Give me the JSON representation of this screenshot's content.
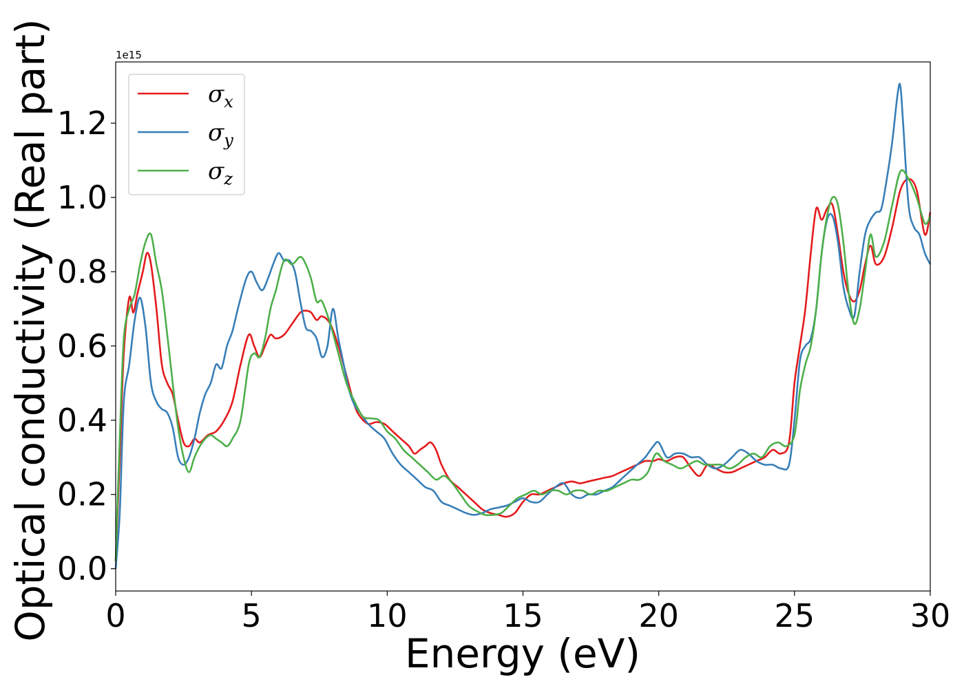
{
  "chart_data": {
    "type": "line",
    "xlabel": "Energy (eV)",
    "ylabel": "Optical conductivity (Real part)",
    "y_scale_label": "1e15",
    "xlim": [
      0,
      30
    ],
    "ylim": [
      -0.06,
      1.365
    ],
    "xticks": [
      0,
      5,
      10,
      15,
      20,
      25,
      30
    ],
    "xtick_labels": [
      "0",
      "5",
      "10",
      "15",
      "20",
      "25",
      "30"
    ],
    "yticks": [
      0.0,
      0.2,
      0.4,
      0.6,
      0.8,
      1.0,
      1.2
    ],
    "ytick_labels": [
      "0.0",
      "0.2",
      "0.4",
      "0.6",
      "0.8",
      "1.0",
      "1.2"
    ],
    "grid": false,
    "legend_position": "top-left",
    "series": [
      {
        "name": "σx",
        "legend_symbol": "σ",
        "legend_sub": "x",
        "color": "#e41a1c",
        "x": [
          0,
          0.15,
          0.3,
          0.5,
          0.65,
          0.8,
          1.0,
          1.15,
          1.3,
          1.5,
          1.7,
          1.9,
          2.1,
          2.3,
          2.5,
          2.7,
          2.9,
          3.1,
          3.4,
          3.7,
          4.0,
          4.3,
          4.6,
          4.9,
          5.1,
          5.3,
          5.5,
          5.7,
          5.9,
          6.2,
          6.5,
          6.8,
          7.0,
          7.2,
          7.4,
          7.6,
          7.9,
          8.2,
          8.5,
          8.8,
          9.0,
          9.3,
          9.6,
          9.9,
          10.2,
          10.5,
          10.8,
          11.0,
          11.2,
          11.4,
          11.6,
          11.8,
          12.0,
          12.3,
          12.6,
          12.9,
          13.2,
          13.5,
          13.8,
          14.1,
          14.4,
          14.7,
          15.0,
          15.3,
          15.6,
          15.9,
          16.2,
          16.5,
          16.8,
          17.1,
          17.4,
          17.7,
          18.0,
          18.3,
          18.6,
          18.9,
          19.2,
          19.5,
          19.8,
          20.0,
          20.3,
          20.6,
          20.9,
          21.2,
          21.5,
          21.8,
          22.1,
          22.4,
          22.7,
          23.0,
          23.3,
          23.6,
          23.9,
          24.2,
          24.5,
          24.8,
          25.0,
          25.2,
          25.4,
          25.6,
          25.8,
          26.0,
          26.2,
          26.4,
          26.6,
          26.8,
          27.0,
          27.2,
          27.4,
          27.6,
          27.8,
          28.0,
          28.3,
          28.6,
          28.9,
          29.2,
          29.5,
          29.8,
          30.0
        ],
        "values": [
          0.02,
          0.3,
          0.58,
          0.73,
          0.69,
          0.74,
          0.8,
          0.85,
          0.82,
          0.7,
          0.55,
          0.5,
          0.47,
          0.4,
          0.34,
          0.33,
          0.35,
          0.34,
          0.36,
          0.37,
          0.4,
          0.45,
          0.55,
          0.63,
          0.6,
          0.57,
          0.6,
          0.63,
          0.62,
          0.63,
          0.66,
          0.69,
          0.695,
          0.69,
          0.67,
          0.68,
          0.66,
          0.6,
          0.52,
          0.44,
          0.41,
          0.39,
          0.395,
          0.39,
          0.37,
          0.35,
          0.33,
          0.31,
          0.32,
          0.33,
          0.34,
          0.32,
          0.28,
          0.24,
          0.22,
          0.2,
          0.18,
          0.16,
          0.15,
          0.145,
          0.14,
          0.15,
          0.18,
          0.2,
          0.2,
          0.21,
          0.22,
          0.23,
          0.235,
          0.23,
          0.235,
          0.24,
          0.245,
          0.25,
          0.26,
          0.27,
          0.28,
          0.29,
          0.29,
          0.295,
          0.29,
          0.3,
          0.3,
          0.27,
          0.25,
          0.28,
          0.27,
          0.26,
          0.26,
          0.27,
          0.28,
          0.29,
          0.3,
          0.32,
          0.31,
          0.34,
          0.5,
          0.6,
          0.7,
          0.85,
          0.97,
          0.94,
          0.97,
          0.98,
          0.9,
          0.8,
          0.74,
          0.72,
          0.75,
          0.82,
          0.87,
          0.82,
          0.84,
          0.92,
          1.02,
          1.05,
          1.02,
          0.9,
          0.96
        ]
      },
      {
        "name": "σy",
        "legend_symbol": "σ",
        "legend_sub": "y",
        "color": "#377eb8",
        "x": [
          0,
          0.15,
          0.3,
          0.5,
          0.7,
          0.9,
          1.1,
          1.3,
          1.5,
          1.7,
          1.9,
          2.1,
          2.3,
          2.5,
          2.7,
          2.9,
          3.1,
          3.3,
          3.5,
          3.7,
          3.9,
          4.1,
          4.3,
          4.5,
          4.8,
          5.0,
          5.2,
          5.4,
          5.6,
          5.8,
          6.0,
          6.2,
          6.4,
          6.6,
          6.8,
          7.0,
          7.2,
          7.4,
          7.6,
          7.8,
          8.0,
          8.2,
          8.4,
          8.6,
          8.8,
          9.0,
          9.3,
          9.6,
          9.9,
          10.2,
          10.5,
          10.8,
          11.1,
          11.4,
          11.7,
          12.0,
          12.3,
          12.6,
          12.9,
          13.2,
          13.5,
          13.8,
          14.1,
          14.4,
          14.7,
          15.0,
          15.3,
          15.6,
          15.9,
          16.2,
          16.5,
          16.8,
          17.1,
          17.4,
          17.7,
          18.0,
          18.3,
          18.6,
          18.9,
          19.2,
          19.5,
          19.8,
          20.0,
          20.3,
          20.6,
          20.9,
          21.2,
          21.5,
          21.8,
          22.1,
          22.4,
          22.7,
          23.0,
          23.3,
          23.6,
          23.9,
          24.2,
          24.5,
          24.8,
          25.0,
          25.2,
          25.4,
          25.6,
          25.8,
          26.0,
          26.2,
          26.4,
          26.6,
          26.8,
          27.0,
          27.2,
          27.4,
          27.6,
          27.8,
          28.0,
          28.2,
          28.4,
          28.6,
          28.8,
          28.9,
          29.0,
          29.2,
          29.4,
          29.6,
          29.8,
          30.0
        ],
        "values": [
          0.0,
          0.15,
          0.45,
          0.55,
          0.67,
          0.73,
          0.65,
          0.5,
          0.45,
          0.43,
          0.42,
          0.38,
          0.3,
          0.28,
          0.3,
          0.35,
          0.42,
          0.47,
          0.5,
          0.55,
          0.54,
          0.6,
          0.64,
          0.7,
          0.78,
          0.8,
          0.77,
          0.75,
          0.78,
          0.82,
          0.85,
          0.83,
          0.83,
          0.8,
          0.72,
          0.65,
          0.64,
          0.62,
          0.57,
          0.6,
          0.7,
          0.62,
          0.55,
          0.48,
          0.44,
          0.42,
          0.39,
          0.37,
          0.35,
          0.31,
          0.28,
          0.26,
          0.24,
          0.22,
          0.21,
          0.18,
          0.17,
          0.16,
          0.15,
          0.145,
          0.15,
          0.16,
          0.165,
          0.17,
          0.18,
          0.19,
          0.18,
          0.18,
          0.2,
          0.22,
          0.23,
          0.2,
          0.19,
          0.2,
          0.2,
          0.21,
          0.22,
          0.24,
          0.26,
          0.28,
          0.3,
          0.33,
          0.34,
          0.3,
          0.31,
          0.31,
          0.3,
          0.3,
          0.28,
          0.27,
          0.28,
          0.3,
          0.32,
          0.31,
          0.29,
          0.28,
          0.28,
          0.27,
          0.28,
          0.4,
          0.56,
          0.6,
          0.62,
          0.7,
          0.85,
          0.94,
          0.95,
          0.88,
          0.76,
          0.7,
          0.68,
          0.8,
          0.9,
          0.94,
          0.96,
          0.97,
          1.05,
          1.15,
          1.28,
          1.3,
          1.2,
          0.98,
          0.92,
          0.9,
          0.85,
          0.82
        ]
      },
      {
        "name": "σz",
        "legend_symbol": "σ",
        "legend_sub": "z",
        "color": "#4daf4a",
        "x": [
          0,
          0.15,
          0.3,
          0.5,
          0.7,
          0.9,
          1.1,
          1.3,
          1.5,
          1.7,
          1.9,
          2.1,
          2.3,
          2.5,
          2.7,
          2.9,
          3.1,
          3.3,
          3.5,
          3.7,
          3.9,
          4.1,
          4.3,
          4.6,
          4.9,
          5.1,
          5.3,
          5.5,
          5.7,
          5.9,
          6.2,
          6.5,
          6.8,
          7.0,
          7.2,
          7.4,
          7.6,
          7.9,
          8.2,
          8.5,
          8.8,
          9.1,
          9.4,
          9.7,
          10.0,
          10.3,
          10.6,
          10.9,
          11.2,
          11.5,
          11.8,
          12.1,
          12.4,
          12.7,
          13.0,
          13.3,
          13.6,
          13.9,
          14.2,
          14.5,
          14.8,
          15.1,
          15.4,
          15.7,
          16.0,
          16.3,
          16.6,
          16.9,
          17.2,
          17.5,
          17.8,
          18.1,
          18.4,
          18.7,
          19.0,
          19.3,
          19.6,
          19.9,
          20.2,
          20.5,
          20.8,
          21.1,
          21.4,
          21.7,
          22.0,
          22.3,
          22.6,
          22.9,
          23.2,
          23.5,
          23.8,
          24.1,
          24.4,
          24.7,
          25.0,
          25.2,
          25.4,
          25.6,
          25.8,
          26.0,
          26.2,
          26.4,
          26.6,
          26.8,
          27.0,
          27.2,
          27.4,
          27.6,
          27.8,
          28.0,
          28.3,
          28.6,
          28.9,
          29.2,
          29.5,
          29.8,
          30.0
        ],
        "values": [
          0.02,
          0.35,
          0.62,
          0.7,
          0.74,
          0.82,
          0.88,
          0.9,
          0.82,
          0.75,
          0.63,
          0.5,
          0.38,
          0.3,
          0.26,
          0.3,
          0.33,
          0.35,
          0.36,
          0.35,
          0.34,
          0.33,
          0.35,
          0.4,
          0.55,
          0.58,
          0.57,
          0.62,
          0.7,
          0.75,
          0.83,
          0.82,
          0.84,
          0.82,
          0.78,
          0.72,
          0.72,
          0.66,
          0.58,
          0.5,
          0.45,
          0.41,
          0.405,
          0.4,
          0.37,
          0.35,
          0.32,
          0.3,
          0.28,
          0.26,
          0.24,
          0.25,
          0.23,
          0.2,
          0.17,
          0.155,
          0.145,
          0.145,
          0.15,
          0.17,
          0.19,
          0.2,
          0.21,
          0.2,
          0.21,
          0.21,
          0.2,
          0.21,
          0.21,
          0.2,
          0.21,
          0.21,
          0.22,
          0.23,
          0.24,
          0.24,
          0.26,
          0.31,
          0.29,
          0.28,
          0.27,
          0.28,
          0.29,
          0.28,
          0.28,
          0.28,
          0.27,
          0.28,
          0.3,
          0.31,
          0.3,
          0.33,
          0.34,
          0.33,
          0.36,
          0.48,
          0.55,
          0.6,
          0.7,
          0.85,
          0.95,
          1.0,
          0.98,
          0.88,
          0.74,
          0.66,
          0.7,
          0.8,
          0.9,
          0.84,
          0.88,
          0.98,
          1.07,
          1.05,
          1.0,
          0.93,
          0.95
        ]
      }
    ]
  }
}
